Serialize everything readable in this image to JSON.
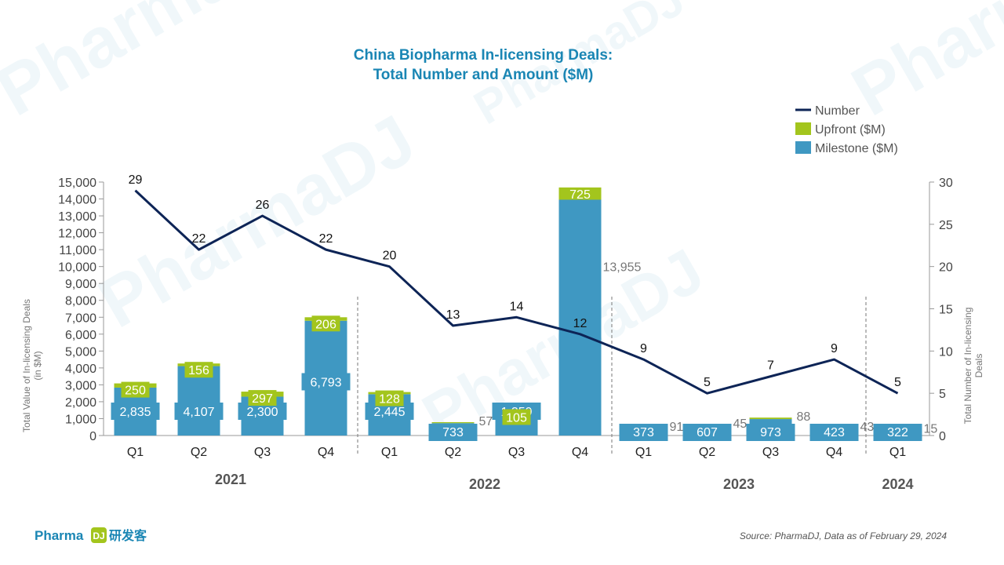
{
  "chart_data": {
    "type": "bar",
    "title_lines": [
      "China Biopharma In-licensing Deals:",
      "Total Number and Amount ($M)"
    ],
    "ylabel_left": [
      "Total Value of In-licensing Deals",
      "(in $M)"
    ],
    "ylabel_right": [
      "Total Number of In-licensing",
      "Deals"
    ],
    "ylim_left": [
      0,
      15000
    ],
    "ylim_right": [
      0,
      30
    ],
    "left_ticks": [
      "0",
      "1,000",
      "2,000",
      "3,000",
      "4,000",
      "5,000",
      "6,000",
      "7,000",
      "8,000",
      "9,000",
      "10,000",
      "11,000",
      "12,000",
      "13,000",
      "14,000",
      "15,000"
    ],
    "right_ticks": [
      "0",
      "5",
      "10",
      "15",
      "20",
      "25",
      "30"
    ],
    "categories": [
      "Q1",
      "Q2",
      "Q3",
      "Q4",
      "Q1",
      "Q2",
      "Q3",
      "Q4",
      "Q1",
      "Q2",
      "Q3",
      "Q4",
      "Q1"
    ],
    "years": [
      {
        "label": "2021",
        "start": 0,
        "end": 3
      },
      {
        "label": "2022",
        "start": 4,
        "end": 7
      },
      {
        "label": "2023",
        "start": 8,
        "end": 11
      },
      {
        "label": "2024",
        "start": 12,
        "end": 12
      }
    ],
    "series": [
      {
        "name": "Milestone ($M)",
        "kind": "bar",
        "color": "#3f98c2",
        "values": [
          2835,
          4107,
          2300,
          6793,
          2445,
          733,
          1359,
          13955,
          373,
          607,
          973,
          423,
          322
        ],
        "labels": [
          "2,835",
          "4,107",
          "2,300",
          "6,793",
          "2,445",
          "733",
          "1,359",
          "13,955",
          "373",
          "607",
          "973",
          "423",
          "322"
        ]
      },
      {
        "name": "Upfront ($M)",
        "kind": "bar",
        "color": "#a3c51d",
        "values": [
          250,
          156,
          297,
          206,
          128,
          57,
          105,
          725,
          91,
          45,
          88,
          43,
          15
        ],
        "labels": [
          "250",
          "156",
          "297",
          "206",
          "128",
          "57",
          "105",
          "725",
          "91",
          "45",
          "88",
          "43",
          "15"
        ]
      },
      {
        "name": "Number",
        "kind": "line",
        "color": "#0d2456",
        "axis": "right",
        "values": [
          29,
          22,
          26,
          22,
          20,
          13,
          14,
          12,
          9,
          5,
          7,
          9,
          5
        ]
      }
    ],
    "legend_position": "top-right",
    "grid": false
  },
  "footer": {
    "source": "Source: PharmaDJ, Data as of February 29, 2024",
    "brand": "Pharma",
    "brand_mark": "DJ",
    "brand_cn": "研发客"
  }
}
